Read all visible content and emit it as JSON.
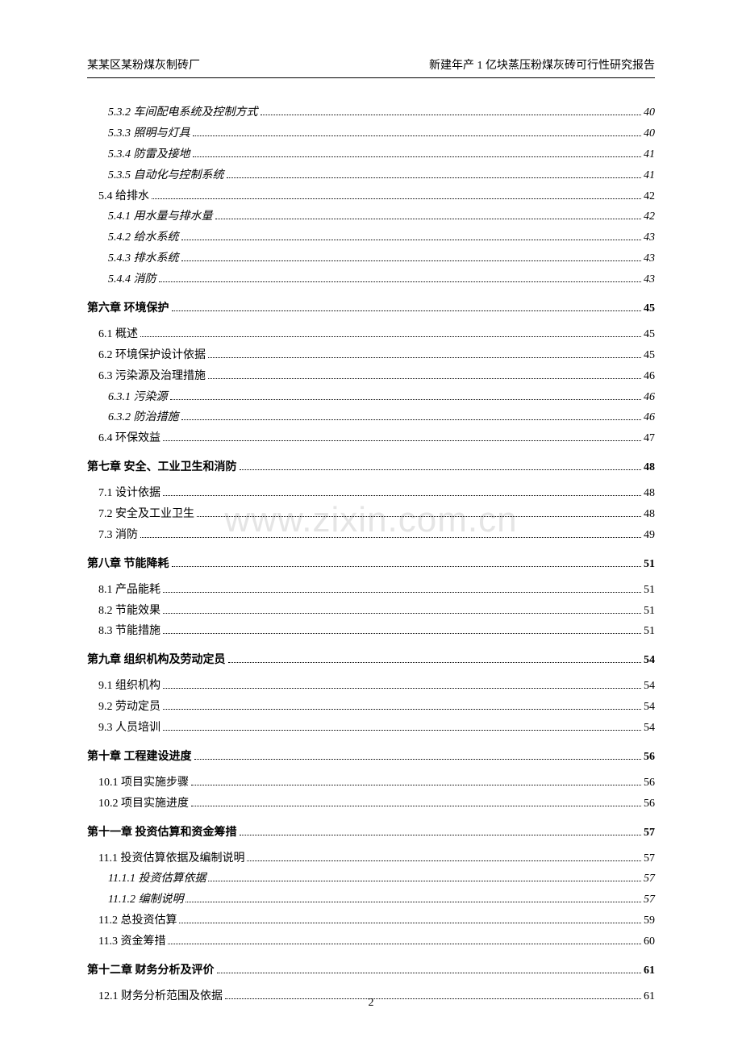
{
  "header": {
    "left": "某某区某粉煤灰制砖厂",
    "right": "新建年产 1 亿块蒸压粉煤灰砖可行性研究报告"
  },
  "watermark": "www.zixin.com.cn",
  "page_number": "2",
  "toc": [
    {
      "level": 4,
      "label": "5.3.2  车间配电系统及控制方式",
      "page": "40"
    },
    {
      "level": 4,
      "label": "5.3.3  照明与灯具",
      "page": "40"
    },
    {
      "level": 4,
      "label": "5.3.4  防雷及接地",
      "page": "41"
    },
    {
      "level": 4,
      "label": "5.3.5  自动化与控制系统",
      "page": "41"
    },
    {
      "level": 3,
      "label": "5.4 给排水",
      "page": "42"
    },
    {
      "level": 4,
      "label": "5.4.1 用水量与排水量",
      "page": "42"
    },
    {
      "level": 4,
      "label": "5.4.2  给水系统",
      "page": "43"
    },
    {
      "level": 4,
      "label": "5.4.3 排水系统",
      "page": "43"
    },
    {
      "level": 4,
      "label": "5.4.4 消防",
      "page": "43"
    },
    {
      "level": 2,
      "chapter": true,
      "label": "第六章   环境保护",
      "page": "45"
    },
    {
      "level": 3,
      "label": "6.1 概述",
      "page": "45"
    },
    {
      "level": 3,
      "label": "6.2 环境保护设计依据",
      "page": "45"
    },
    {
      "level": 3,
      "label": "6.3 污染源及治理措施",
      "page": "46"
    },
    {
      "level": 4,
      "label": "6.3.1  污染源",
      "page": "46"
    },
    {
      "level": 4,
      "label": "6.3.2 防治措施",
      "page": "46"
    },
    {
      "level": 3,
      "label": "6.4 环保效益",
      "page": "47"
    },
    {
      "level": 2,
      "chapter": true,
      "label": "第七章   安全、工业卫生和消防 ",
      "page": "48"
    },
    {
      "level": 3,
      "label": "7.1 设计依据",
      "page": "48"
    },
    {
      "level": 3,
      "label": "7.2 安全及工业卫生",
      "page": "48"
    },
    {
      "level": 3,
      "label": "7.3 消防",
      "page": "49"
    },
    {
      "level": 2,
      "chapter": true,
      "label": "第八章   节能降耗",
      "page": "51"
    },
    {
      "level": 3,
      "label": "8.1 产品能耗",
      "page": "51"
    },
    {
      "level": 3,
      "label": "8.2 节能效果",
      "page": "51"
    },
    {
      "level": 3,
      "label": "8.3 节能措施",
      "page": "51"
    },
    {
      "level": 2,
      "chapter": true,
      "label": "第九章   组织机构及劳动定员",
      "page": "54"
    },
    {
      "level": 3,
      "label": "9.1 组织机构",
      "page": "54"
    },
    {
      "level": 3,
      "label": "9.2 劳动定员",
      "page": "54"
    },
    {
      "level": 3,
      "label": "9.3 人员培训",
      "page": "54"
    },
    {
      "level": 2,
      "chapter": true,
      "label": "第十章   工程建设进度",
      "page": "56"
    },
    {
      "level": 3,
      "label": "10.1 项目实施步骤",
      "page": "56"
    },
    {
      "level": 3,
      "label": "10.2 项目实施进度",
      "page": "56"
    },
    {
      "level": 2,
      "chapter": true,
      "label": "第十一章   投资估算和资金筹措 ",
      "page": "57"
    },
    {
      "level": 3,
      "label": "11.1 投资估算依据及编制说明",
      "page": "57"
    },
    {
      "level": 4,
      "label": "11.1.1  投资估算依据",
      "page": "57"
    },
    {
      "level": 4,
      "label": "11.1.2   编制说明",
      "page": "57"
    },
    {
      "level": 3,
      "label": "11.2 总投资估算",
      "page": "59"
    },
    {
      "level": 3,
      "label": "11.3 资金筹措",
      "page": "60"
    },
    {
      "level": 2,
      "chapter": true,
      "label": "第十二章   财务分析及评价",
      "page": "61"
    },
    {
      "level": 3,
      "label": "12.1 财务分析范围及依据",
      "page": "61"
    }
  ]
}
